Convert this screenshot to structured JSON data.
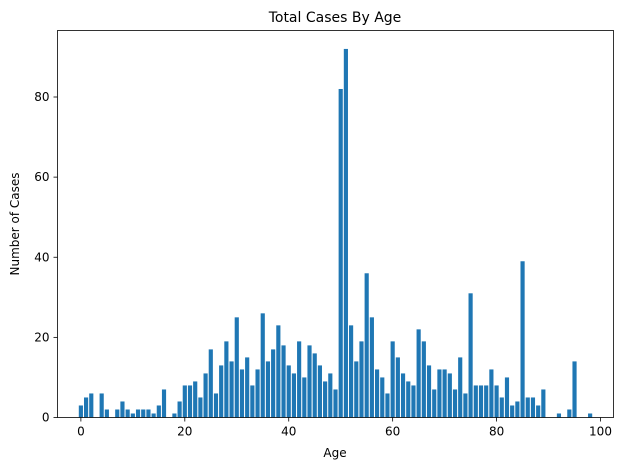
{
  "chart_data": {
    "type": "bar",
    "title": "Total Cases By Age",
    "xlabel": "Age",
    "ylabel": "Number of Cases",
    "xlim": [
      -4.5,
      102.5
    ],
    "ylim": [
      0,
      96.6
    ],
    "xticks": [
      0,
      20,
      40,
      60,
      80,
      100
    ],
    "yticks": [
      0,
      20,
      40,
      60,
      80
    ],
    "grid": false,
    "bar_color": "#1f77b4",
    "x": [
      0,
      1,
      2,
      4,
      5,
      7,
      8,
      9,
      10,
      11,
      12,
      13,
      14,
      15,
      16,
      18,
      19,
      20,
      21,
      22,
      23,
      24,
      25,
      26,
      27,
      28,
      29,
      30,
      31,
      32,
      33,
      34,
      35,
      36,
      37,
      38,
      39,
      40,
      41,
      42,
      43,
      44,
      45,
      46,
      47,
      48,
      49,
      50,
      51,
      52,
      53,
      54,
      55,
      56,
      57,
      58,
      59,
      60,
      61,
      62,
      63,
      64,
      65,
      66,
      67,
      68,
      69,
      70,
      71,
      72,
      73,
      74,
      75,
      76,
      77,
      78,
      79,
      80,
      81,
      82,
      83,
      84,
      85,
      86,
      87,
      88,
      89,
      92,
      94,
      95,
      98
    ],
    "values": [
      3,
      5,
      6,
      6,
      2,
      2,
      4,
      2,
      1,
      2,
      2,
      2,
      1,
      3,
      7,
      1,
      4,
      8,
      8,
      9,
      5,
      11,
      17,
      6,
      13,
      19,
      14,
      25,
      12,
      15,
      8,
      12,
      26,
      14,
      17,
      23,
      18,
      13,
      11,
      19,
      10,
      18,
      16,
      13,
      9,
      11,
      7,
      82,
      92,
      23,
      14,
      19,
      36,
      25,
      12,
      10,
      6,
      19,
      15,
      11,
      9,
      8,
      22,
      19,
      13,
      7,
      12,
      12,
      11,
      7,
      15,
      6,
      31,
      8,
      8,
      8,
      12,
      8,
      5,
      10,
      3,
      4,
      39,
      5,
      5,
      3,
      7,
      1,
      2,
      14,
      1
    ]
  }
}
